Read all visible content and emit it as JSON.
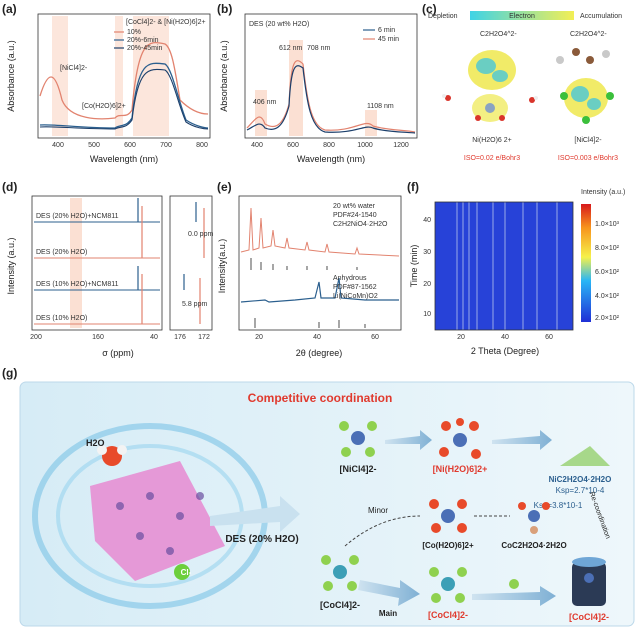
{
  "colors": {
    "red": "#e2836f",
    "blue": "#2b5f8e",
    "navy": "#1c3f6b",
    "band": "#f8c9b6",
    "accent_red": "#e03a2e"
  },
  "panel_a": {
    "label": "(a)",
    "ylabel": "Absorbance (a.u.)",
    "xlabel": "Wavelength (nm)",
    "legend": [
      "10%",
      "20%-6min",
      "20%-45min"
    ],
    "annotations": [
      "[NiCl4]2-",
      "[Co(H2O)6]2+",
      "[CoCl4]2- & [Ni(H2O)6]2+"
    ],
    "xticks": [
      "400",
      "500",
      "600",
      "700",
      "800"
    ]
  },
  "panel_b": {
    "label": "(b)",
    "title": "DES (20 wt% H2O)",
    "ylabel": "Absorbance (a.u.)",
    "xlabel": "Wavelength (nm)",
    "legend": [
      "6 min",
      "45 min"
    ],
    "annotations": [
      "406 nm",
      "612 nm",
      "708 nm",
      "1108 nm"
    ],
    "xticks": [
      "400",
      "600",
      "800",
      "1000",
      "1200"
    ]
  },
  "panel_c": {
    "label": "(c)",
    "left_label": "Depletion",
    "bar_label": "Electron",
    "right_label": "Accumulation",
    "mol1": {
      "formula": "C2H2O4^2-",
      "complex": "Ni(H2O)6 2+",
      "iso": "ISO=0.02 e/Bohr3"
    },
    "mol2": {
      "formula": "C2H2O4^2-",
      "complex": "[NiCl4]2-",
      "iso": "ISO=0.003 e/Bohr3"
    }
  },
  "panel_d": {
    "label": "(d)",
    "ylabel": "Intensity (a.u.)",
    "xlabel": "σ (ppm)",
    "traces": [
      "DES (20% H2O)+NCM811",
      "DES (20% H2O)",
      "DES (10% H2O)+NCM811",
      "DES (10% H2O)"
    ],
    "xticks": [
      "200",
      "160",
      "40",
      "176",
      "172"
    ],
    "insets": [
      "0.0 ppm",
      "5.8 ppm"
    ]
  },
  "panel_e": {
    "label": "(e)",
    "ylabel": "Intensity(a.u.)",
    "xlabel": "2θ (degree)",
    "legend_top": [
      "20 wt% water",
      "PDF#24-1540",
      "C2H2NiO4·2H2O"
    ],
    "legend_bottom": [
      "Anhydrous",
      "PDF#87-1562",
      "Li(NiCoMn)O2"
    ],
    "xticks": [
      "20",
      "40",
      "60"
    ]
  },
  "panel_f": {
    "label": "(f)",
    "ylabel": "Time (min)",
    "xlabel": "2 Theta (Degree)",
    "cbar_title": "Intensity (a.u.)",
    "yticks": [
      "10",
      "20",
      "30",
      "40"
    ],
    "xticks": [
      "20",
      "40",
      "60"
    ],
    "cbar_ticks": [
      "1.0×10³",
      "8.0×10²",
      "6.0×10²",
      "4.0×10²",
      "2.0×10²"
    ]
  },
  "panel_g": {
    "label": "(g)",
    "title": "Competitive coordination",
    "labels": {
      "water": "H2O",
      "chloride": "Cl-",
      "des": "DES (20% H2O)",
      "nicl4": "[NiCl4]2-",
      "ni_h2o": "[Ni(H2O)6]2+",
      "ni_oxalate": "NiC2H2O4·2H2O",
      "ksp1": "Ksp=2.7*10-4",
      "ksp2": "Ksp=3.8*10-1",
      "minor": "Minor",
      "main": "Main",
      "co_h2o": "[Co(H2O)6]2+",
      "co_oxalate": "CoC2H2O4·2H2O",
      "cocl4_left": "[CoCl4]2-",
      "cocl4_mid": "[CoCl4]2-",
      "cocl4_right": "[CoCl4]2-",
      "recoord": "Re-coordination"
    }
  }
}
